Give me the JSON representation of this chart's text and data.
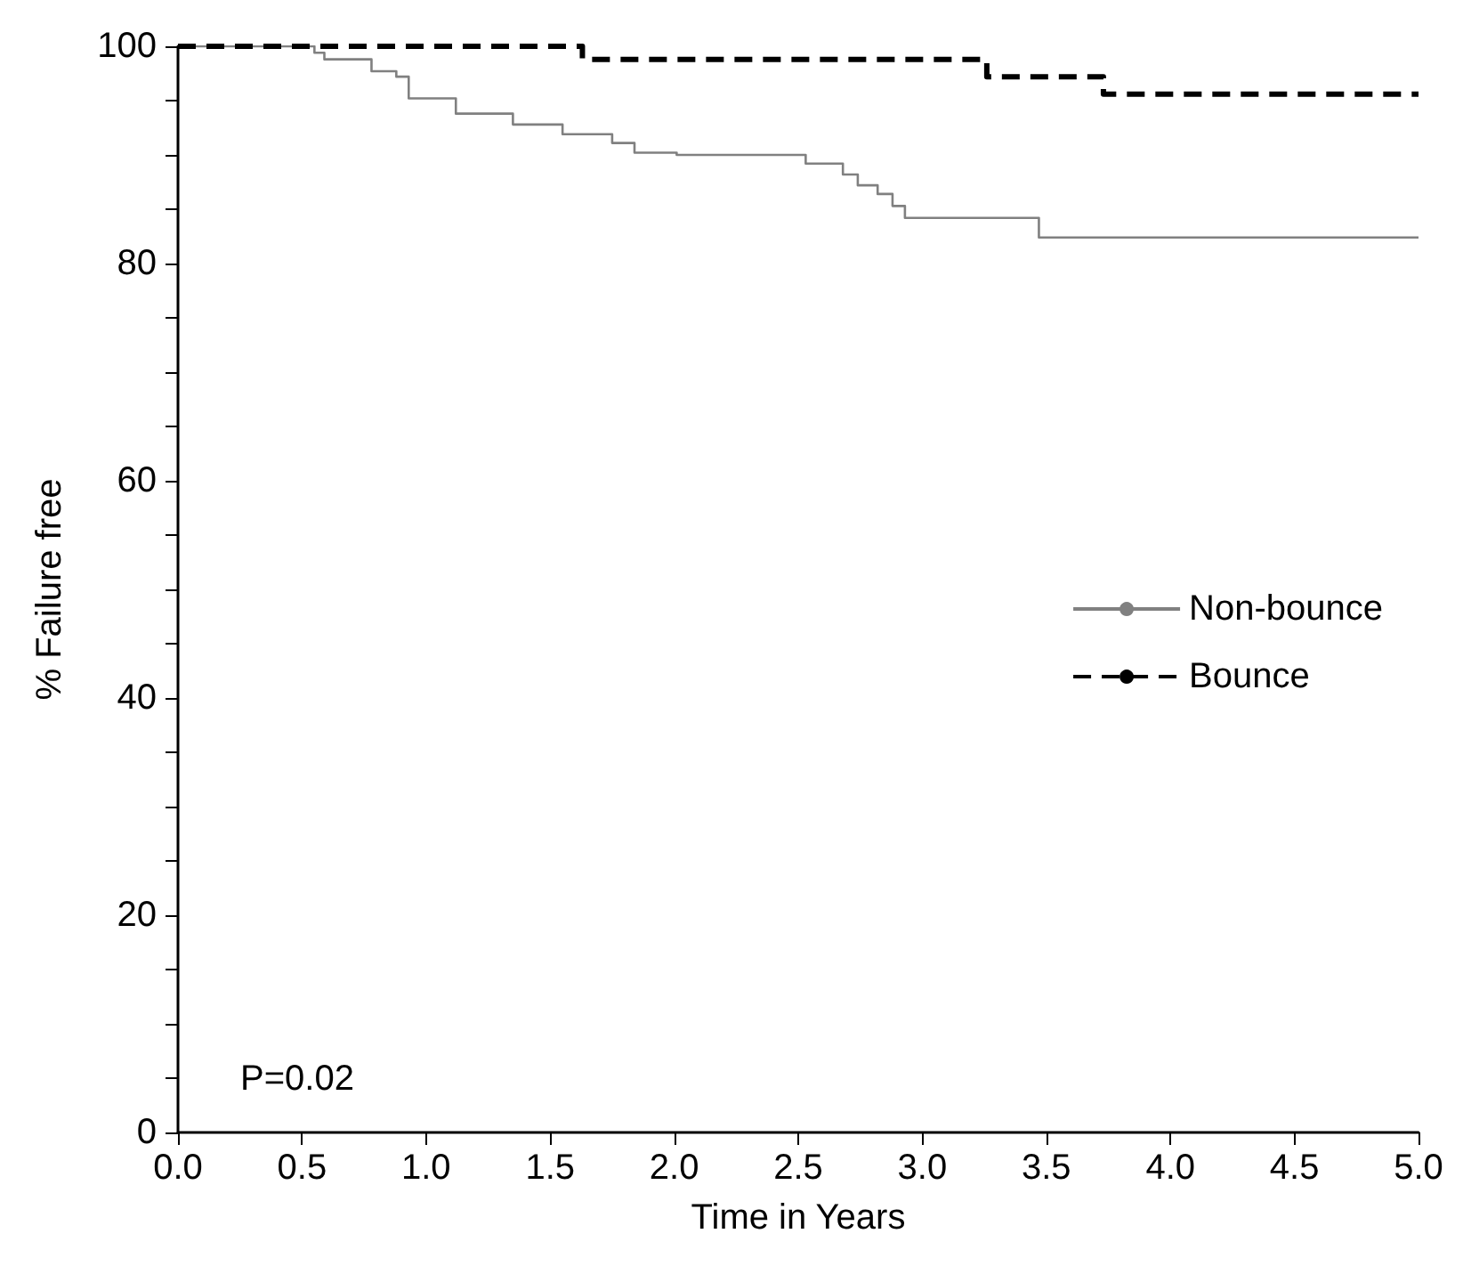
{
  "chart_data": {
    "type": "step",
    "xlabel": "Time in Years",
    "ylabel": "% Failure free",
    "annotations": [
      "P=0.02"
    ],
    "series": [
      {
        "name": "Non-bounce",
        "color": "#808080",
        "line_style": "solid",
        "x": [
          0,
          0.55,
          0.59,
          0.78,
          0.88,
          0.93,
          1.12,
          1.35,
          1.55,
          1.75,
          1.84,
          2.01,
          2.53,
          2.68,
          2.74,
          2.82,
          2.88,
          2.93,
          3.47,
          5
        ],
        "values": [
          100,
          99.4,
          98.8,
          97.7,
          97.2,
          95.2,
          93.8,
          92.8,
          91.9,
          91.1,
          90.2,
          90,
          89.2,
          88.2,
          87.2,
          86.4,
          85.3,
          84.2,
          82.4,
          82.4
        ]
      },
      {
        "name": "Bounce",
        "color": "#000000",
        "line_style": "dashed",
        "x": [
          0,
          1.63,
          3.26,
          3.73,
          5
        ],
        "values": [
          100,
          98.8,
          97.2,
          95.6,
          95.6
        ]
      }
    ],
    "xlim": [
      0,
      5
    ],
    "xticks": [
      {
        "value": 0,
        "label": "0.0"
      },
      {
        "value": 0.5,
        "label": "0.5"
      },
      {
        "value": 1,
        "label": "1.0"
      },
      {
        "value": 1.5,
        "label": "1.5"
      },
      {
        "value": 2,
        "label": "2.0"
      },
      {
        "value": 2.5,
        "label": "2.5"
      },
      {
        "value": 3,
        "label": "3.0"
      },
      {
        "value": 3.5,
        "label": "3.5"
      },
      {
        "value": 4,
        "label": "4.0"
      },
      {
        "value": 4.5,
        "label": "4.5"
      },
      {
        "value": 5,
        "label": "5.0"
      }
    ],
    "ylim": [
      0,
      100
    ],
    "yticks": [
      0,
      {
        "value": 5,
        "label": null
      },
      {
        "value": 10,
        "label": null
      },
      {
        "value": 15,
        "label": null
      },
      20,
      {
        "value": 25,
        "label": null
      },
      {
        "value": 30,
        "label": null
      },
      {
        "value": 35,
        "label": null
      },
      40,
      {
        "value": 45,
        "label": null
      },
      {
        "value": 50,
        "label": null
      },
      {
        "value": 55,
        "label": null
      },
      60,
      {
        "value": 65,
        "label": null
      },
      {
        "value": 70,
        "label": null
      },
      {
        "value": 75,
        "label": null
      },
      80,
      {
        "value": 85,
        "label": null
      },
      {
        "value": 90,
        "label": null
      },
      {
        "value": 95,
        "label": null
      },
      100
    ],
    "grid": false,
    "legend": "right",
    "marker": "none"
  }
}
